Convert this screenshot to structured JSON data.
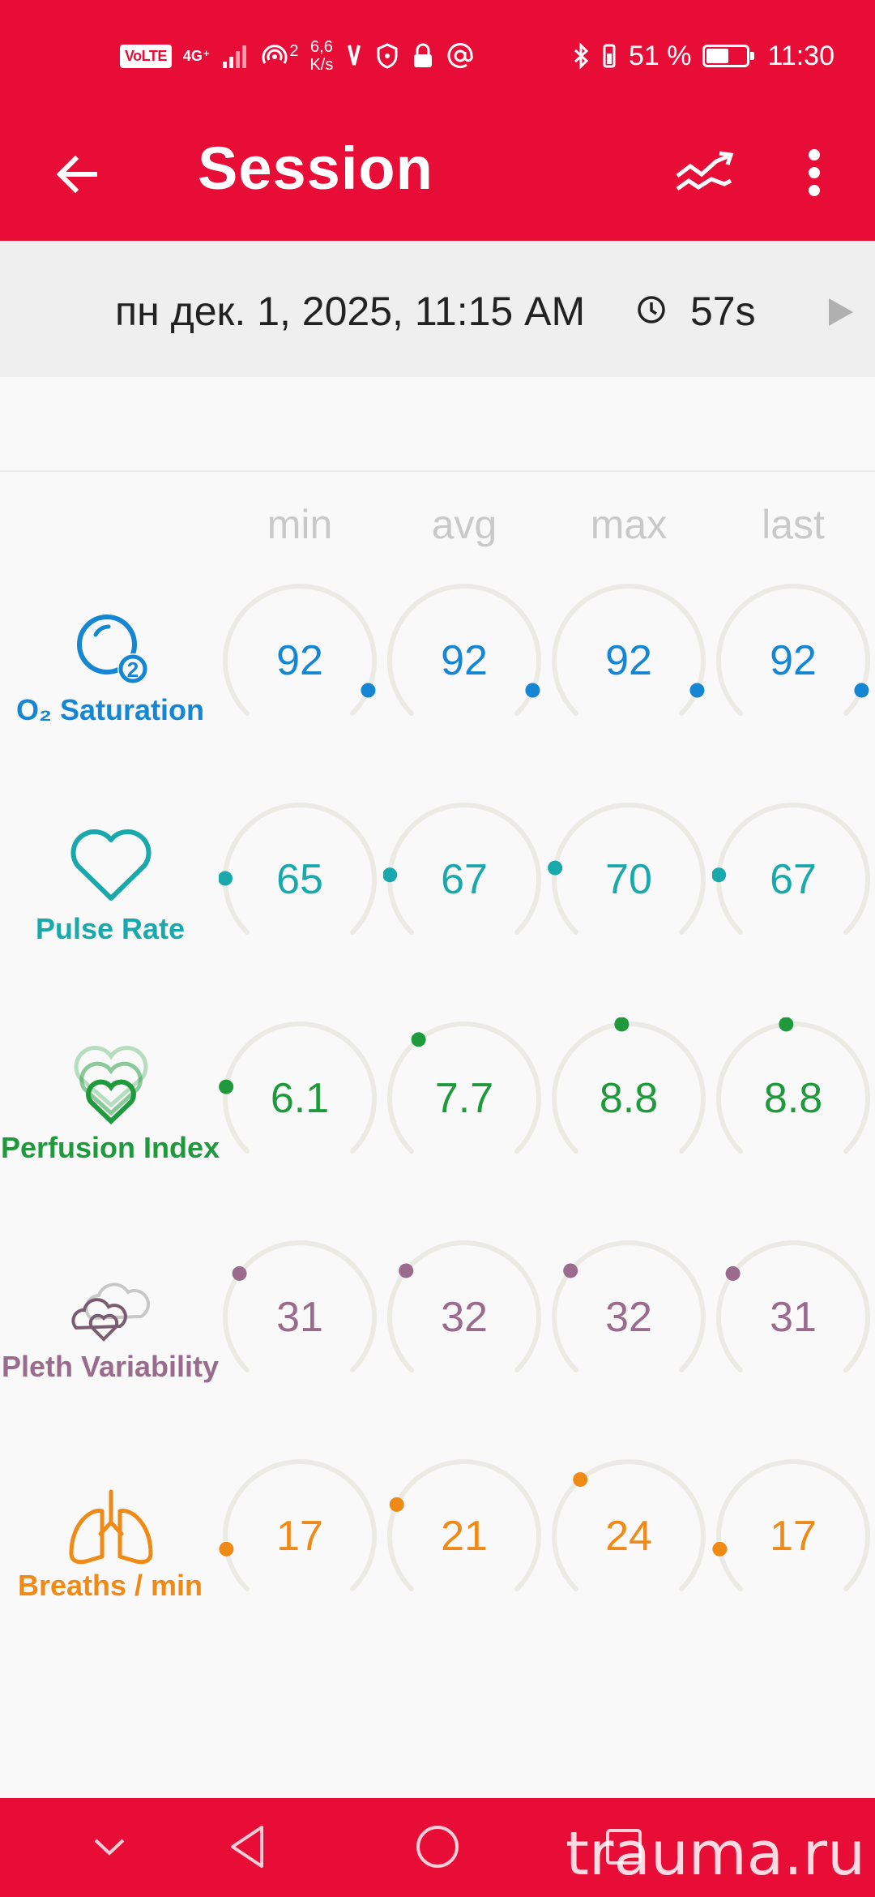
{
  "status_bar": {
    "volte": "VoLTE",
    "network": "4G⁺",
    "hotspot_count": "2",
    "speed_value": "6,6",
    "speed_unit": "K/s",
    "battery_percent": "51 %",
    "battery_level": 0.51,
    "time": "11:30"
  },
  "app_bar": {
    "title": "Session"
  },
  "session": {
    "date": "пн дек. 1, 2025, 11:15 AM",
    "duration": "57s"
  },
  "columns": [
    "min",
    "avg",
    "max",
    "last"
  ],
  "metrics": [
    {
      "label": "O₂ Saturation",
      "icon": "o2-saturation-icon",
      "color": "#1486d4",
      "values": [
        "92",
        "92",
        "92",
        "92"
      ],
      "levels": [
        0.92,
        0.92,
        0.92,
        0.92
      ]
    },
    {
      "label": "Pulse Rate",
      "icon": "heart-icon",
      "color": "#19a9ad",
      "values": [
        "65",
        "67",
        "70",
        "67"
      ],
      "levels": [
        0.17,
        0.18,
        0.2,
        0.18
      ]
    },
    {
      "label": "Perfusion Index",
      "icon": "perfusion-hearts-icon",
      "color": "#1e9a3c",
      "values": [
        "6.1",
        "7.7",
        "8.8",
        "8.8"
      ],
      "levels": [
        0.2,
        0.36,
        0.48,
        0.48
      ]
    },
    {
      "label": "Pleth Variability",
      "icon": "pleth-variability-icon",
      "color": "#9a6b8d",
      "values": [
        "31",
        "32",
        "32",
        "31"
      ],
      "levels": [
        0.3,
        0.31,
        0.31,
        0.3
      ]
    },
    {
      "label": "Breaths / min",
      "icon": "lungs-icon",
      "color": "#f08a17",
      "values": [
        "17",
        "21",
        "24",
        "17"
      ],
      "levels": [
        0.13,
        0.26,
        0.35,
        0.13
      ]
    }
  ],
  "watermark": "trauma.ru"
}
